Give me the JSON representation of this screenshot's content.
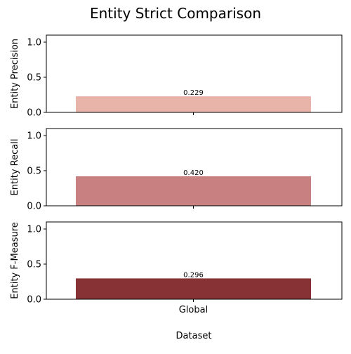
{
  "figure": {
    "title": "Entity Strict Comparison",
    "xlabel": "Dataset"
  },
  "chart_data": [
    {
      "type": "bar",
      "categories": [
        "Global"
      ],
      "values": [
        0.229
      ],
      "value_labels": [
        "0.229"
      ],
      "ylabel": "Entity Precision",
      "ylim": [
        0,
        1.1
      ],
      "yticks": [
        "0.0",
        "0.5",
        "1.0"
      ],
      "show_xticklabels": false,
      "color": "#e8b4aa",
      "grid": false
    },
    {
      "type": "bar",
      "categories": [
        "Global"
      ],
      "values": [
        0.42
      ],
      "value_labels": [
        "0.420"
      ],
      "ylabel": "Entity Recall",
      "ylim": [
        0,
        1.1
      ],
      "yticks": [
        "0.0",
        "0.5",
        "1.0"
      ],
      "show_xticklabels": false,
      "color": "#c98080",
      "grid": false
    },
    {
      "type": "bar",
      "categories": [
        "Global"
      ],
      "values": [
        0.296
      ],
      "value_labels": [
        "0.296"
      ],
      "ylabel": "Entity F-Measure",
      "ylim": [
        0,
        1.1
      ],
      "yticks": [
        "0.0",
        "0.5",
        "1.0"
      ],
      "show_xticklabels": true,
      "color": "#873234",
      "grid": false
    }
  ]
}
